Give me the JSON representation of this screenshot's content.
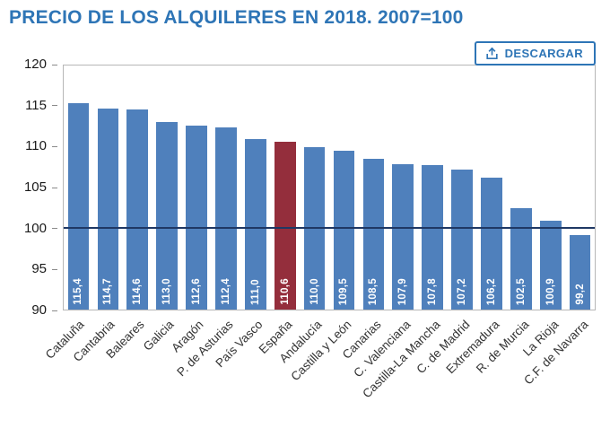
{
  "header": {
    "title": "PRECIO DE LOS ALQUILERES EN 2018. 2007=100",
    "download_label": "DESCARGAR",
    "download_icon": "download-tray-arrow-icon"
  },
  "colors": {
    "title": "#2E75B6",
    "bar": "#4F80BC",
    "bar_highlight": "#942E3C",
    "reference_line": "#1F3864",
    "button": "#2E75B6",
    "axis_text": "#1a1a1a"
  },
  "chart_data": {
    "type": "bar",
    "title": "PRECIO DE LOS ALQUILERES EN 2018. 2007=100",
    "categories": [
      "Cataluña",
      "Cantabria",
      "Baleares",
      "Galicia",
      "Aragón",
      "P. de Asturias",
      "País Vasco",
      "España",
      "Andalucía",
      "Castilla y León",
      "Canarias",
      "C. Valenciana",
      "Castilla-La Mancha",
      "C. de Madrid",
      "Extremadura",
      "R. de Murcia",
      "La Rioja",
      "C.F. de Navarra"
    ],
    "values": [
      115.4,
      114.7,
      114.6,
      113.0,
      112.6,
      112.4,
      111.0,
      110.6,
      110.0,
      109.5,
      108.5,
      107.9,
      107.8,
      107.2,
      106.2,
      102.5,
      100.9,
      99.2
    ],
    "value_labels": [
      "115,4",
      "114,7",
      "114,6",
      "113,0",
      "112,6",
      "112,4",
      "111,0",
      "110,6",
      "110,0",
      "109,5",
      "108,5",
      "107,9",
      "107,8",
      "107,2",
      "106,2",
      "102,5",
      "100,9",
      "99,2"
    ],
    "highlight_index": 7,
    "highlight_category": "España",
    "xlabel": "",
    "ylabel": "",
    "ylim": [
      90,
      120
    ],
    "yticks": [
      90,
      95,
      100,
      105,
      110,
      115,
      120
    ],
    "reference_line": 100,
    "grid": false,
    "legend": false
  }
}
